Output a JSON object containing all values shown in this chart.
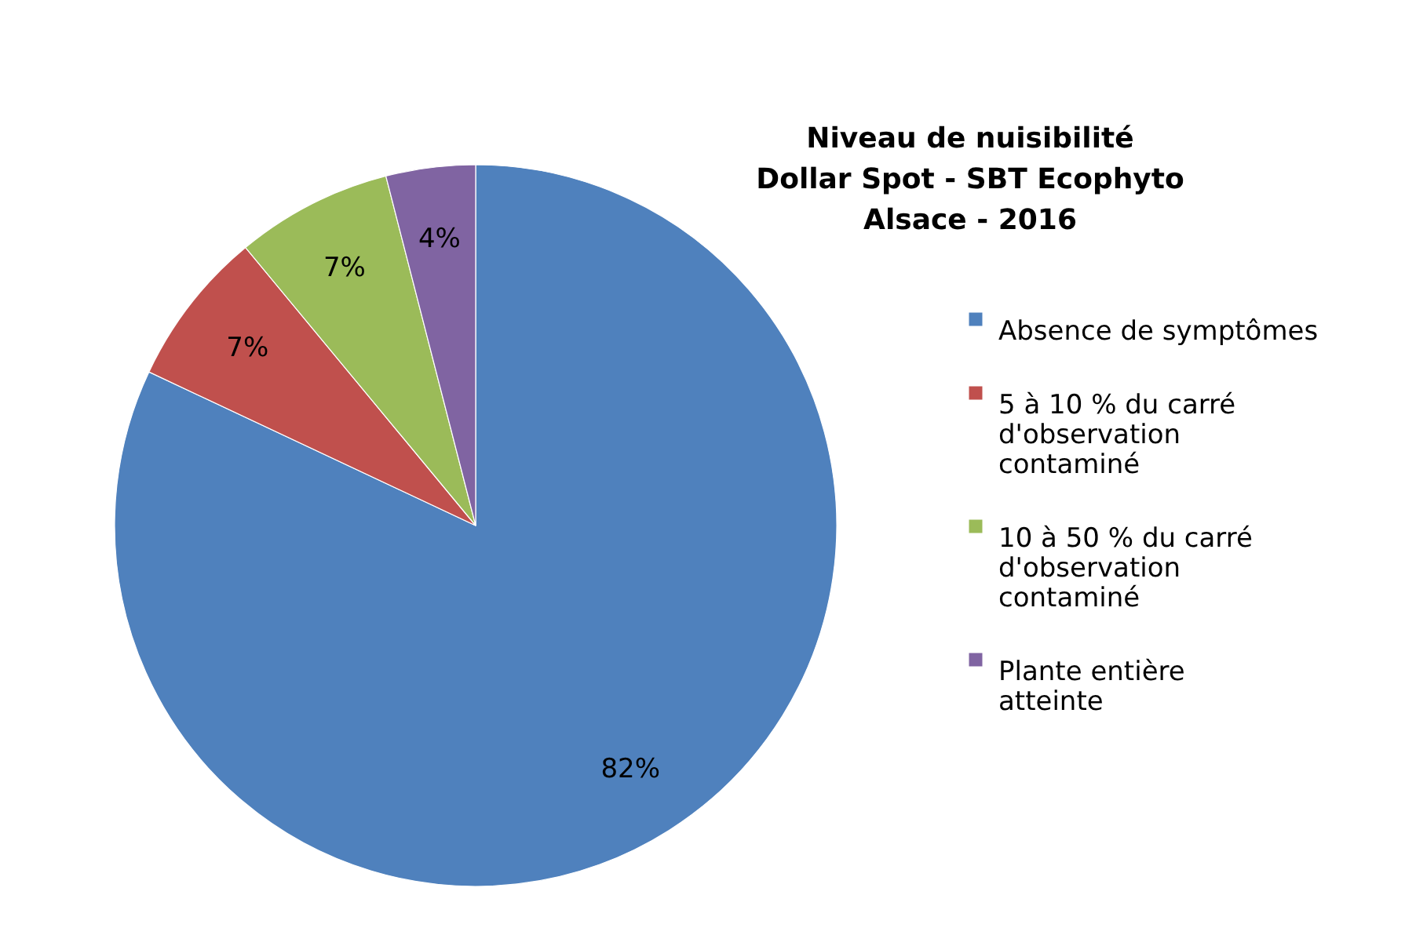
{
  "chart_data": {
    "type": "pie",
    "title": "Niveau de nuisibilité Dollar Spot - SBT Ecophyto Alsace - 2016",
    "categories": [
      "Absence de symptômes",
      "5 à 10 % du carré d'observation contaminé",
      "10 à 50 % du carré d'observation contaminé",
      "Plante entière atteinte"
    ],
    "values": [
      82,
      7,
      7,
      4
    ],
    "colors": [
      "#4f81bd",
      "#c0504d",
      "#9bbb59",
      "#8064a2"
    ],
    "value_labels": [
      "82%",
      "7%",
      "7%",
      "4%"
    ],
    "legend": "right"
  }
}
